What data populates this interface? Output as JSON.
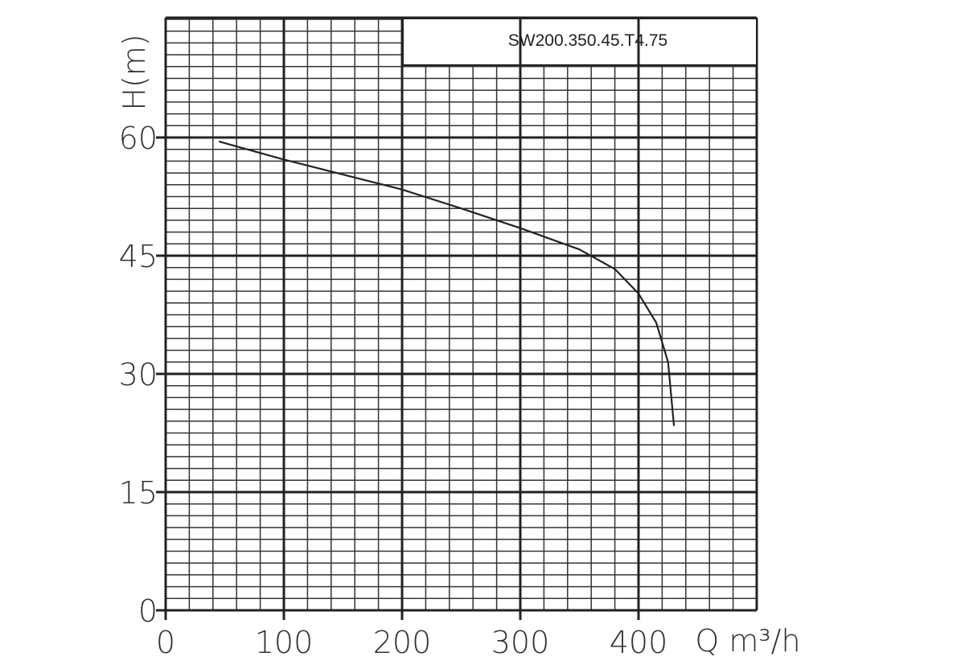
{
  "chart_data": {
    "type": "line",
    "title": "SW200.350.45.T4.75",
    "x_label": "Q m³/h",
    "y_label": "H(m)",
    "x": [
      45,
      100,
      150,
      200,
      250,
      300,
      350,
      380,
      400,
      415,
      425,
      430
    ],
    "series": [
      {
        "name": "SW200.350.45.T4.75",
        "color": "#222222",
        "values": [
          59.5,
          57.2,
          55.3,
          53.4,
          51.0,
          48.5,
          45.8,
          43.3,
          40.2,
          36.5,
          31.5,
          23.4
        ]
      }
    ],
    "xlim": [
      0,
      500
    ],
    "ylim": [
      0,
      75
    ],
    "xticks": [
      0,
      100,
      200,
      300,
      400
    ],
    "yticks": [
      0,
      15,
      30,
      45,
      60
    ],
    "x_minor_step": 20,
    "y_minor_step": 1.5,
    "grid": true
  }
}
